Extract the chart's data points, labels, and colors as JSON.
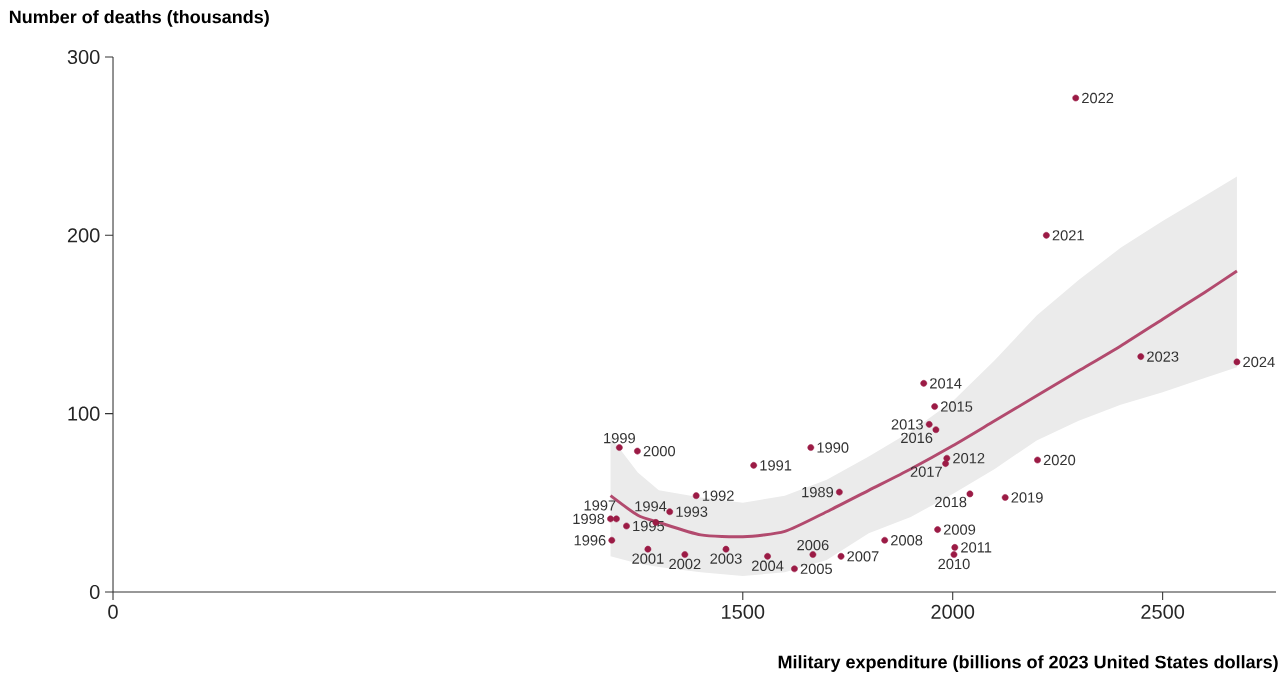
{
  "chart_data": {
    "type": "scatter",
    "ylabel": "Number of deaths (thousands)",
    "xlabel": "Military expenditure (billions of 2023 United States dollars)",
    "xlim": [
      0,
      2770
    ],
    "xticks": [
      0,
      1500,
      2000,
      2500
    ],
    "ylim": [
      0,
      300
    ],
    "yticks": [
      0,
      100,
      200,
      300
    ],
    "series": [
      {
        "type": "scatter",
        "color": "#9b1b45",
        "marker": "circle",
        "x": [
          1730,
          1662,
          1526,
          1389,
          1326,
          1293,
          1223,
          1188,
          1199,
          1185,
          1206,
          1249,
          1274,
          1362,
          1460,
          1559,
          1623,
          1667,
          1734,
          1838,
          1964,
          2003,
          2005,
          1986,
          1944,
          1931,
          1957,
          1960,
          1983,
          2041,
          2125,
          2202,
          2223,
          2293,
          2448,
          2677
        ],
        "values": [
          56,
          81,
          71,
          54,
          45,
          39,
          37,
          29,
          41,
          41,
          81,
          79,
          24,
          21,
          24,
          20,
          13,
          21,
          20,
          29,
          35,
          21,
          25,
          75,
          94,
          117,
          104,
          91,
          72,
          55,
          53,
          74,
          200,
          277,
          132,
          129
        ]
      },
      {
        "type": "line",
        "color": "#b24a6e",
        "x": [
          1185,
          1250,
          1300,
          1400,
          1500,
          1600,
          1700,
          1800,
          1900,
          2000,
          2100,
          2200,
          2300,
          2400,
          2500,
          2600,
          2677
        ],
        "values": [
          54,
          43,
          39,
          32,
          31,
          34,
          45,
          57,
          69,
          82,
          96,
          110,
          124,
          138,
          153,
          168,
          180
        ],
        "lower": [
          20,
          16,
          14,
          11,
          9,
          11,
          18,
          33,
          42,
          55,
          69,
          85,
          96,
          105,
          112,
          120,
          126
        ],
        "upper": [
          87,
          67,
          57,
          53,
          50,
          54,
          63,
          76,
          90,
          107,
          130,
          155,
          175,
          193,
          208,
          222,
          233
        ]
      }
    ],
    "annotations": [
      {
        "text": "1989",
        "x": 1730,
        "y": 56
      },
      {
        "text": "1990",
        "x": 1662,
        "y": 81
      },
      {
        "text": "1991",
        "x": 1526,
        "y": 71
      },
      {
        "text": "1992",
        "x": 1389,
        "y": 54
      },
      {
        "text": "1993",
        "x": 1326,
        "y": 45
      },
      {
        "text": "1994",
        "x": 1293,
        "y": 39
      },
      {
        "text": "1995",
        "x": 1223,
        "y": 37
      },
      {
        "text": "1996",
        "x": 1188,
        "y": 29
      },
      {
        "text": "1997",
        "x": 1199,
        "y": 41
      },
      {
        "text": "1998",
        "x": 1185,
        "y": 41
      },
      {
        "text": "1999",
        "x": 1206,
        "y": 81
      },
      {
        "text": "2000",
        "x": 1249,
        "y": 79
      },
      {
        "text": "2001",
        "x": 1274,
        "y": 24
      },
      {
        "text": "2002",
        "x": 1362,
        "y": 21
      },
      {
        "text": "2003",
        "x": 1460,
        "y": 24
      },
      {
        "text": "2004",
        "x": 1559,
        "y": 20
      },
      {
        "text": "2005",
        "x": 1623,
        "y": 13
      },
      {
        "text": "2006",
        "x": 1667,
        "y": 21
      },
      {
        "text": "2007",
        "x": 1734,
        "y": 20
      },
      {
        "text": "2008",
        "x": 1838,
        "y": 29
      },
      {
        "text": "2009",
        "x": 1964,
        "y": 35
      },
      {
        "text": "2010",
        "x": 2003,
        "y": 21
      },
      {
        "text": "2011",
        "x": 2005,
        "y": 25
      },
      {
        "text": "2012",
        "x": 1986,
        "y": 75
      },
      {
        "text": "2013",
        "x": 1944,
        "y": 94
      },
      {
        "text": "2014",
        "x": 1931,
        "y": 117
      },
      {
        "text": "2015",
        "x": 1957,
        "y": 104
      },
      {
        "text": "2016",
        "x": 1960,
        "y": 91
      },
      {
        "text": "2017",
        "x": 1983,
        "y": 72
      },
      {
        "text": "2018",
        "x": 2041,
        "y": 55
      },
      {
        "text": "2019",
        "x": 2125,
        "y": 53
      },
      {
        "text": "2020",
        "x": 2202,
        "y": 74
      },
      {
        "text": "2021",
        "x": 2223,
        "y": 200
      },
      {
        "text": "2022",
        "x": 2293,
        "y": 277
      },
      {
        "text": "2023",
        "x": 2448,
        "y": 132
      },
      {
        "text": "2024",
        "x": 2677,
        "y": 129
      }
    ]
  }
}
